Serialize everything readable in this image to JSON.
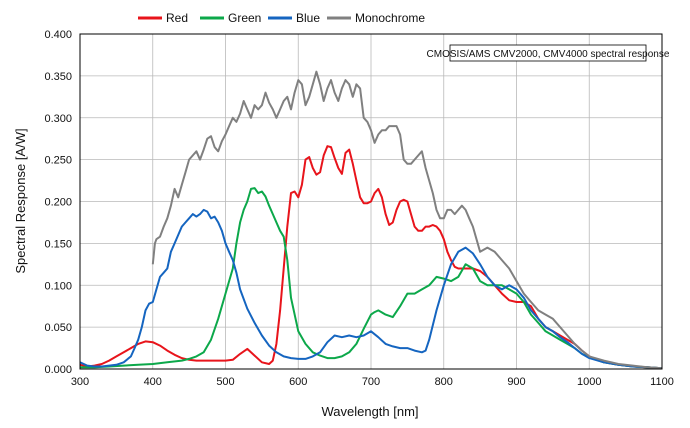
{
  "chart_data": {
    "type": "line",
    "title": "",
    "xlabel": "Wavelength [nm]",
    "ylabel": "Spectral Response [A/W]",
    "xlim": [
      300,
      1100
    ],
    "ylim": [
      0,
      0.4
    ],
    "xticks": [
      300,
      400,
      500,
      600,
      700,
      800,
      900,
      1000,
      1100
    ],
    "xtick_labels": [
      "300",
      "400",
      "500",
      "600",
      "700",
      "800",
      "900",
      "1000",
      "1100"
    ],
    "yticks": [
      0,
      0.05,
      0.1,
      0.15,
      0.2,
      0.25,
      0.3,
      0.35,
      0.4
    ],
    "ytick_labels": [
      "0.000",
      "0.050",
      "0.100",
      "0.150",
      "0.200",
      "0.250",
      "0.300",
      "0.350",
      "0.400"
    ],
    "grid": true,
    "legend_position": "top",
    "annotation": "CMOSIS/AMS CMV2000, CMV4000 spectral response",
    "series": [
      {
        "name": "Red",
        "color": "#e8141b",
        "x": [
          300,
          310,
          320,
          330,
          340,
          350,
          360,
          370,
          380,
          390,
          400,
          410,
          420,
          430,
          440,
          450,
          460,
          470,
          480,
          490,
          500,
          510,
          520,
          530,
          540,
          550,
          560,
          565,
          570,
          575,
          580,
          585,
          590,
          595,
          600,
          605,
          610,
          615,
          620,
          625,
          630,
          635,
          640,
          645,
          650,
          655,
          660,
          665,
          670,
          675,
          680,
          685,
          690,
          695,
          700,
          705,
          710,
          715,
          720,
          725,
          730,
          735,
          740,
          745,
          750,
          755,
          760,
          765,
          770,
          775,
          780,
          785,
          790,
          795,
          800,
          805,
          810,
          815,
          820,
          830,
          840,
          850,
          860,
          870,
          880,
          890,
          900,
          910,
          920,
          930,
          940,
          950,
          960,
          970,
          980,
          990,
          1000,
          1020,
          1040,
          1060,
          1080,
          1100
        ],
        "values": [
          0.005,
          0.003,
          0.004,
          0.006,
          0.01,
          0.015,
          0.02,
          0.025,
          0.03,
          0.033,
          0.032,
          0.028,
          0.022,
          0.017,
          0.013,
          0.011,
          0.01,
          0.01,
          0.01,
          0.01,
          0.01,
          0.011,
          0.018,
          0.024,
          0.016,
          0.008,
          0.006,
          0.01,
          0.03,
          0.07,
          0.12,
          0.17,
          0.21,
          0.212,
          0.205,
          0.22,
          0.25,
          0.253,
          0.24,
          0.232,
          0.235,
          0.255,
          0.266,
          0.265,
          0.252,
          0.24,
          0.233,
          0.258,
          0.262,
          0.245,
          0.225,
          0.205,
          0.198,
          0.198,
          0.2,
          0.21,
          0.215,
          0.205,
          0.185,
          0.172,
          0.175,
          0.19,
          0.2,
          0.202,
          0.2,
          0.185,
          0.17,
          0.165,
          0.165,
          0.17,
          0.17,
          0.172,
          0.17,
          0.165,
          0.155,
          0.14,
          0.13,
          0.122,
          0.12,
          0.12,
          0.12,
          0.117,
          0.11,
          0.1,
          0.09,
          0.082,
          0.08,
          0.08,
          0.075,
          0.06,
          0.05,
          0.045,
          0.04,
          0.035,
          0.03,
          0.022,
          0.015,
          0.008,
          0.005,
          0.003,
          0.002,
          0.001
        ]
      },
      {
        "name": "Green",
        "color": "#0ca84a",
        "x": [
          300,
          320,
          340,
          360,
          380,
          400,
          420,
          440,
          450,
          460,
          470,
          480,
          490,
          500,
          510,
          515,
          520,
          525,
          530,
          535,
          540,
          545,
          550,
          555,
          560,
          565,
          570,
          575,
          580,
          585,
          590,
          600,
          610,
          620,
          630,
          640,
          650,
          660,
          670,
          680,
          690,
          700,
          705,
          710,
          720,
          730,
          740,
          750,
          760,
          770,
          780,
          790,
          800,
          810,
          820,
          830,
          840,
          850,
          860,
          870,
          880,
          890,
          900,
          910,
          920,
          930,
          940,
          950,
          960,
          970,
          980,
          990,
          1000,
          1020,
          1040,
          1060,
          1080,
          1100
        ],
        "values": [
          0.002,
          0.002,
          0.003,
          0.004,
          0.005,
          0.006,
          0.008,
          0.01,
          0.012,
          0.015,
          0.02,
          0.035,
          0.06,
          0.09,
          0.12,
          0.15,
          0.175,
          0.19,
          0.2,
          0.215,
          0.216,
          0.21,
          0.212,
          0.206,
          0.195,
          0.185,
          0.175,
          0.165,
          0.158,
          0.13,
          0.085,
          0.045,
          0.03,
          0.02,
          0.016,
          0.013,
          0.013,
          0.015,
          0.02,
          0.03,
          0.048,
          0.065,
          0.068,
          0.07,
          0.065,
          0.062,
          0.075,
          0.09,
          0.09,
          0.095,
          0.1,
          0.11,
          0.108,
          0.105,
          0.11,
          0.125,
          0.12,
          0.105,
          0.1,
          0.1,
          0.1,
          0.095,
          0.09,
          0.08,
          0.065,
          0.055,
          0.045,
          0.04,
          0.035,
          0.03,
          0.025,
          0.018,
          0.014,
          0.008,
          0.005,
          0.003,
          0.002,
          0.001
        ]
      },
      {
        "name": "Blue",
        "color": "#1565c0",
        "x": [
          300,
          310,
          320,
          330,
          340,
          350,
          360,
          370,
          375,
          380,
          385,
          390,
          395,
          400,
          405,
          410,
          415,
          420,
          425,
          430,
          435,
          440,
          445,
          450,
          455,
          460,
          465,
          470,
          475,
          480,
          485,
          490,
          495,
          500,
          505,
          510,
          515,
          520,
          530,
          540,
          550,
          560,
          570,
          580,
          590,
          600,
          610,
          620,
          630,
          640,
          650,
          660,
          670,
          680,
          690,
          700,
          710,
          720,
          730,
          740,
          750,
          760,
          770,
          775,
          780,
          790,
          800,
          810,
          820,
          830,
          840,
          850,
          860,
          870,
          880,
          890,
          900,
          910,
          920,
          930,
          940,
          950,
          960,
          970,
          980,
          990,
          1000,
          1020,
          1040,
          1060,
          1080,
          1100
        ],
        "values": [
          0.008,
          0.004,
          0.003,
          0.003,
          0.004,
          0.005,
          0.008,
          0.015,
          0.025,
          0.035,
          0.05,
          0.07,
          0.078,
          0.08,
          0.095,
          0.11,
          0.115,
          0.12,
          0.14,
          0.15,
          0.16,
          0.17,
          0.175,
          0.18,
          0.185,
          0.182,
          0.185,
          0.19,
          0.188,
          0.18,
          0.182,
          0.175,
          0.165,
          0.15,
          0.14,
          0.13,
          0.115,
          0.095,
          0.072,
          0.055,
          0.04,
          0.028,
          0.02,
          0.015,
          0.013,
          0.012,
          0.012,
          0.015,
          0.02,
          0.032,
          0.04,
          0.038,
          0.04,
          0.038,
          0.04,
          0.045,
          0.038,
          0.03,
          0.027,
          0.025,
          0.025,
          0.022,
          0.02,
          0.022,
          0.035,
          0.07,
          0.1,
          0.125,
          0.14,
          0.145,
          0.138,
          0.125,
          0.11,
          0.1,
          0.095,
          0.1,
          0.095,
          0.085,
          0.07,
          0.06,
          0.05,
          0.045,
          0.038,
          0.032,
          0.025,
          0.018,
          0.013,
          0.008,
          0.005,
          0.003,
          0.002,
          0.001
        ]
      },
      {
        "name": "Monochrome",
        "color": "#808080",
        "x": [
          400,
          403,
          405,
          410,
          415,
          420,
          425,
          430,
          435,
          440,
          445,
          450,
          455,
          460,
          465,
          470,
          475,
          480,
          485,
          490,
          495,
          500,
          505,
          510,
          515,
          520,
          525,
          530,
          535,
          540,
          545,
          550,
          555,
          560,
          565,
          570,
          575,
          580,
          585,
          590,
          595,
          600,
          605,
          610,
          615,
          620,
          625,
          630,
          635,
          640,
          645,
          650,
          655,
          660,
          665,
          670,
          675,
          680,
          685,
          690,
          695,
          700,
          705,
          710,
          715,
          720,
          725,
          730,
          735,
          740,
          745,
          750,
          755,
          760,
          765,
          770,
          775,
          780,
          785,
          790,
          795,
          800,
          805,
          810,
          815,
          820,
          825,
          830,
          835,
          840,
          845,
          850,
          860,
          870,
          880,
          890,
          900,
          910,
          920,
          930,
          940,
          950,
          960,
          970,
          980,
          990,
          1000,
          1020,
          1040,
          1060,
          1080,
          1100
        ],
        "values": [
          0.125,
          0.15,
          0.155,
          0.158,
          0.17,
          0.18,
          0.195,
          0.215,
          0.205,
          0.22,
          0.235,
          0.25,
          0.255,
          0.26,
          0.25,
          0.262,
          0.275,
          0.278,
          0.265,
          0.26,
          0.272,
          0.28,
          0.29,
          0.3,
          0.295,
          0.305,
          0.32,
          0.31,
          0.3,
          0.315,
          0.31,
          0.315,
          0.33,
          0.318,
          0.31,
          0.3,
          0.31,
          0.32,
          0.325,
          0.31,
          0.33,
          0.345,
          0.34,
          0.315,
          0.325,
          0.34,
          0.355,
          0.34,
          0.32,
          0.335,
          0.345,
          0.33,
          0.32,
          0.335,
          0.345,
          0.34,
          0.325,
          0.34,
          0.335,
          0.3,
          0.295,
          0.285,
          0.27,
          0.28,
          0.285,
          0.285,
          0.29,
          0.29,
          0.29,
          0.28,
          0.25,
          0.245,
          0.245,
          0.25,
          0.255,
          0.26,
          0.24,
          0.225,
          0.21,
          0.19,
          0.18,
          0.18,
          0.19,
          0.19,
          0.185,
          0.19,
          0.195,
          0.19,
          0.18,
          0.17,
          0.155,
          0.14,
          0.145,
          0.14,
          0.13,
          0.12,
          0.105,
          0.09,
          0.08,
          0.07,
          0.065,
          0.06,
          0.05,
          0.04,
          0.03,
          0.022,
          0.015,
          0.01,
          0.006,
          0.004,
          0.002,
          0.001
        ]
      }
    ]
  }
}
